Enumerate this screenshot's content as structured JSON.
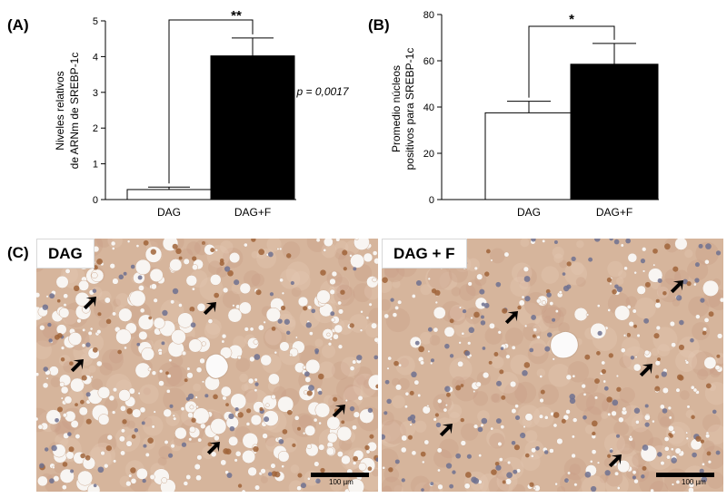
{
  "panels": {
    "a_label": "(A)",
    "b_label": "(B)",
    "c_label": "(C)"
  },
  "chart_data": [
    {
      "type": "bar",
      "categories": [
        "DAG",
        "DAG+F"
      ],
      "values": [
        0.28,
        4.02
      ],
      "errors": [
        0.07,
        0.5
      ],
      "ylabel_line1": "Niveles relativos",
      "ylabel_line2": "de ARNm de SREBP-1c",
      "ylim": [
        0,
        5
      ],
      "yticks": [
        0,
        1,
        2,
        3,
        4,
        5
      ],
      "significance": "**",
      "pvalue": "p = 0,0017",
      "bar_colors": [
        "#ffffff",
        "#000000"
      ]
    },
    {
      "type": "bar",
      "categories": [
        "DAG",
        "DAG+F"
      ],
      "values": [
        37.5,
        58.5
      ],
      "errors": [
        5,
        9
      ],
      "ylabel_line1": "Promedio núcleos",
      "ylabel_line2": "positivos para SREBP-1c",
      "ylim": [
        0,
        80
      ],
      "yticks": [
        0,
        20,
        40,
        60,
        80
      ],
      "significance": "*",
      "bar_colors": [
        "#ffffff",
        "#000000"
      ]
    }
  ],
  "micrographs": [
    {
      "label": "DAG",
      "scale_label": "100 µm"
    },
    {
      "label": "DAG + F",
      "scale_label": "100 µm"
    }
  ],
  "colors": {
    "tissue_base": "#d6b59c",
    "nucleus_brown": "#a0643a",
    "nucleus_blue": "#6e7190"
  }
}
